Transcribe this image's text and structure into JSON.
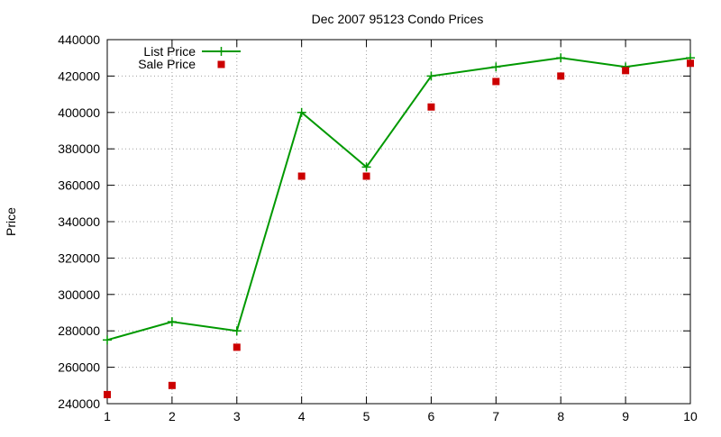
{
  "chart_data": {
    "type": "line",
    "title": "Dec 2007 95123 Condo Prices",
    "ylabel": "Price",
    "xlabel": "",
    "x": [
      1,
      2,
      3,
      4,
      5,
      6,
      7,
      8,
      9,
      10
    ],
    "xlim": [
      1,
      10
    ],
    "ylim": [
      240000,
      440000
    ],
    "xticks": [
      "1",
      "2",
      "3",
      "4",
      "5",
      "6",
      "7",
      "8",
      "9",
      "10"
    ],
    "yticks": [
      "240000",
      "260000",
      "280000",
      "300000",
      "320000",
      "340000",
      "360000",
      "380000",
      "400000",
      "420000",
      "440000"
    ],
    "grid": true,
    "legend_position": "top-left",
    "series": [
      {
        "name": "List Price",
        "style": "lines+points",
        "marker": "plus",
        "color": "#009900",
        "values": [
          275000,
          285000,
          280000,
          400000,
          370000,
          420000,
          425000,
          430000,
          425000,
          430000
        ]
      },
      {
        "name": "Sale Price",
        "style": "points",
        "marker": "square",
        "color": "#cc0000",
        "values": [
          245000,
          250000,
          271000,
          365000,
          365000,
          403000,
          417000,
          420000,
          423000,
          427000
        ]
      }
    ]
  }
}
